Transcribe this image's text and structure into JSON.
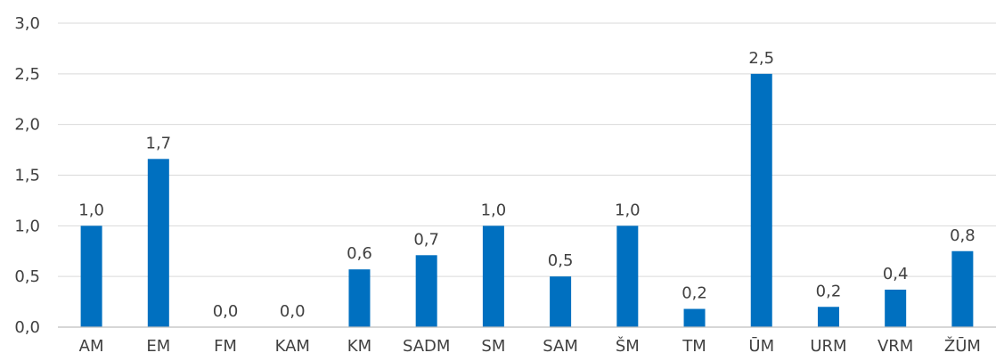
{
  "chart_data": {
    "type": "bar",
    "categories": [
      "AM",
      "EM",
      "FM",
      "KAM",
      "KM",
      "SADM",
      "SM",
      "SAM",
      "ŠM",
      "TM",
      "ŪM",
      "URM",
      "VRM",
      "ŽŪM"
    ],
    "values": [
      1.0,
      1.66,
      0.0,
      0.0,
      0.57,
      0.71,
      1.0,
      0.5,
      1.0,
      0.18,
      2.5,
      0.2,
      0.37,
      0.75
    ],
    "data_labels": [
      "1,0",
      "1,7",
      "0,0",
      "0,0",
      "0,6",
      "0,7",
      "1,0",
      "0,5",
      "1,0",
      "0,2",
      "2,5",
      "0,2",
      "0,4",
      "0,8"
    ],
    "y_ticks": [
      0.0,
      0.5,
      1.0,
      1.5,
      2.0,
      2.5,
      3.0
    ],
    "y_tick_labels": [
      "0,0",
      "0,5",
      "1,0",
      "1,5",
      "2,0",
      "2,5",
      "3,0"
    ],
    "ylim": [
      0,
      3.0
    ],
    "grid": true,
    "legend": "none",
    "bar_color": "#0070C0",
    "title": "",
    "xlabel": "",
    "ylabel": ""
  }
}
